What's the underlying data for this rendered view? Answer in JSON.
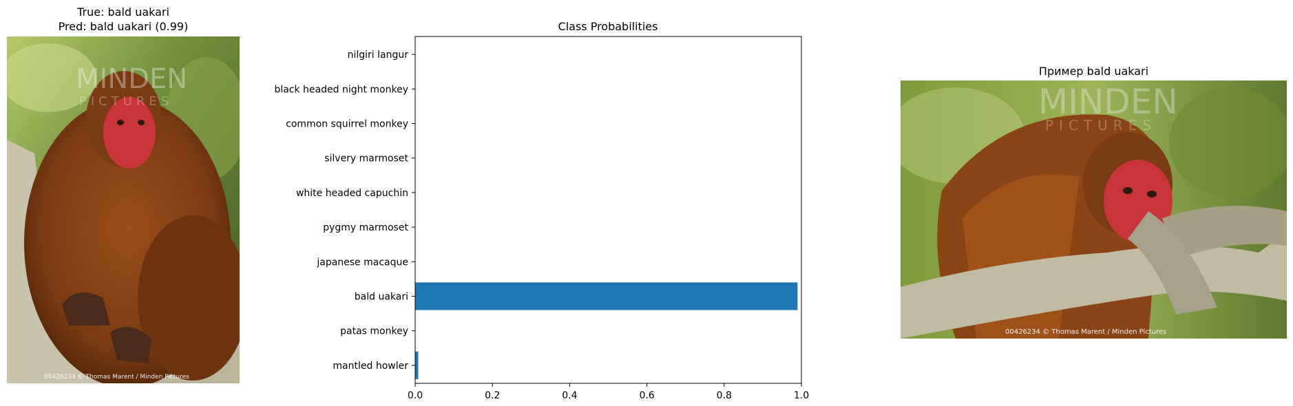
{
  "left_panel": {
    "title_line1": "True: bald uakari",
    "title_line2": "Pred: bald uakari (0.99)",
    "watermark_line1": "MINDEN",
    "watermark_line2": "PICTURES",
    "credit": "00426234   © Thomas Marent / Minden Pictures"
  },
  "right_panel": {
    "title": "Пример bald uakari",
    "watermark_line1": "MINDEN",
    "watermark_line2": "PICTURES",
    "credit": "00426234   © Thomas Marent / Minden Pictures"
  },
  "chart_data": {
    "type": "bar",
    "orientation": "horizontal",
    "title": "Class Probabilities",
    "categories": [
      "mantled howler",
      "patas monkey",
      "bald uakari",
      "japanese macaque",
      "pygmy marmoset",
      "white headed capuchin",
      "silvery marmoset",
      "common squirrel monkey",
      "black headed night monkey",
      "nilgiri langur"
    ],
    "values": [
      0.008,
      0.0005,
      0.99,
      0.0003,
      0.0003,
      0.0004,
      0.0003,
      0.0004,
      0.0003,
      0.0003
    ],
    "xlim": [
      0,
      1.0
    ],
    "xticks": [
      "0.0",
      "0.2",
      "0.4",
      "0.6",
      "0.8",
      "1.0"
    ],
    "bar_color": "#1f77b4",
    "grid": false
  }
}
